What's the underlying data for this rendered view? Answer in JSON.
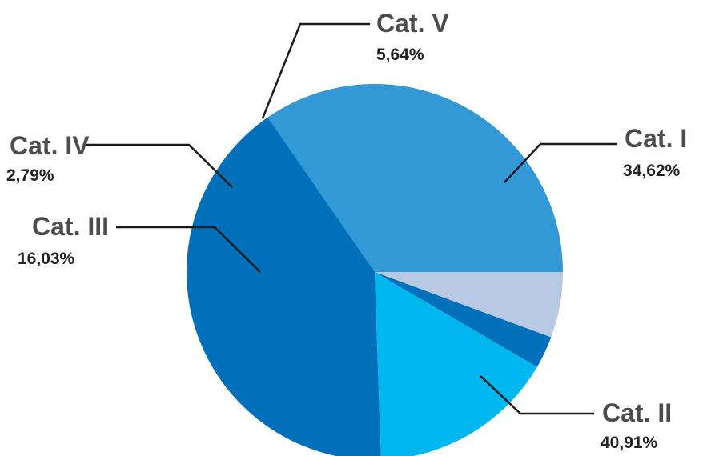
{
  "chart_data": {
    "type": "pie",
    "slices": [
      {
        "label": "Cat. I",
        "value": 34.62,
        "value_label": "34,62%",
        "color": "#3399d6"
      },
      {
        "label": "Cat. II",
        "value": 40.91,
        "value_label": "40,91%",
        "color": "#0070bb"
      },
      {
        "label": "Cat. III",
        "value": 16.03,
        "value_label": "16,03%",
        "color": "#00b6ee"
      },
      {
        "label": "Cat. IV",
        "value": 2.79,
        "value_label": "2,79%",
        "color": "#0070bb"
      },
      {
        "label": "Cat. V",
        "value": 5.64,
        "value_label": "5,64%",
        "color": "#b8c9e3"
      }
    ]
  }
}
